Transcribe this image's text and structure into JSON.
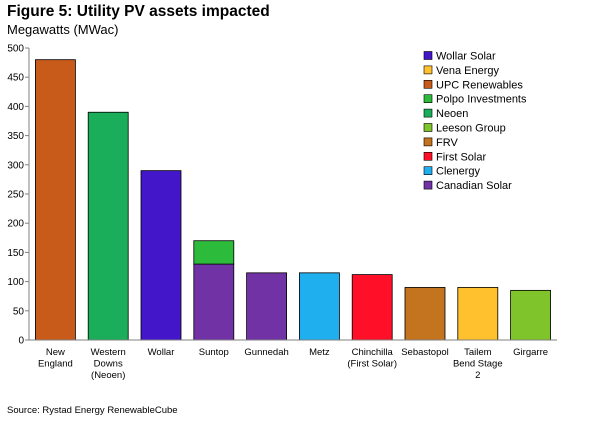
{
  "title": "Figure 5: Utility PV assets impacted",
  "subtitle": "Megawatts (MWac)",
  "source": "Source: Rystad Energy RenewableCube",
  "chart_data": {
    "type": "bar",
    "stacked": true,
    "ylabel": "Megawatts (MWac)",
    "ylim": [
      0,
      500
    ],
    "yticks": [
      0,
      50,
      100,
      150,
      200,
      250,
      300,
      350,
      400,
      450,
      500
    ],
    "grid": false,
    "legend_position": "top-right",
    "categories": [
      [
        "New",
        "England"
      ],
      [
        "Western",
        "Downs",
        "(Neoen)"
      ],
      [
        "Wollar"
      ],
      [
        "Suntop"
      ],
      [
        "Gunnedah"
      ],
      [
        "Metz"
      ],
      [
        "Chinchilla",
        "(First Solar)"
      ],
      [
        "Sebastopol"
      ],
      [
        "Tailem",
        "Bend Stage",
        "2"
      ],
      [
        "Girgarre"
      ]
    ],
    "series": [
      {
        "name": "Wollar Solar",
        "color": "#4316C9",
        "values": [
          0,
          0,
          290,
          0,
          0,
          0,
          0,
          0,
          0,
          0
        ]
      },
      {
        "name": "Vena Energy",
        "color": "#FFC12E",
        "values": [
          0,
          0,
          0,
          0,
          0,
          0,
          0,
          0,
          90,
          0
        ]
      },
      {
        "name": "UPC Renewables",
        "color": "#C85A1A",
        "values": [
          480,
          0,
          0,
          0,
          0,
          0,
          0,
          0,
          0,
          0
        ]
      },
      {
        "name": "Polpo Investments",
        "color": "#2DBB3C",
        "values": [
          0,
          0,
          0,
          40,
          0,
          0,
          0,
          0,
          0,
          0
        ]
      },
      {
        "name": "Neoen",
        "color": "#1AAE5A",
        "values": [
          0,
          390,
          0,
          0,
          0,
          0,
          0,
          0,
          0,
          0
        ]
      },
      {
        "name": "Leeson Group",
        "color": "#7EC42A",
        "values": [
          0,
          0,
          0,
          0,
          0,
          0,
          0,
          0,
          0,
          85
        ]
      },
      {
        "name": "FRV",
        "color": "#C4731E",
        "values": [
          0,
          0,
          0,
          0,
          0,
          0,
          0,
          90,
          0,
          0
        ]
      },
      {
        "name": "First Solar",
        "color": "#FF1028",
        "values": [
          0,
          0,
          0,
          0,
          0,
          0,
          112,
          0,
          0,
          0
        ]
      },
      {
        "name": "Clenergy",
        "color": "#1FAFEF",
        "values": [
          0,
          0,
          0,
          0,
          0,
          115,
          0,
          0,
          0,
          0
        ]
      },
      {
        "name": "Canadian Solar",
        "color": "#7132A6",
        "values": [
          0,
          0,
          0,
          130,
          115,
          0,
          0,
          0,
          0,
          0
        ]
      }
    ],
    "stack_order": [
      "Canadian Solar",
      "Polpo Investments"
    ]
  }
}
